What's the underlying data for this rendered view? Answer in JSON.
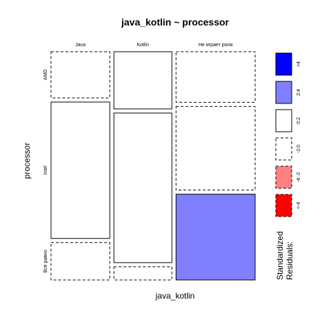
{
  "chart_data": {
    "type": "mosaic",
    "title": "java_kotlin ~ processor",
    "xlabel": "java_kotlin",
    "ylabel": "processor",
    "columns": [
      "Java",
      "Kotlin",
      "Не играет роли"
    ],
    "rows": [
      "AMD",
      "Intel",
      "Всё равно"
    ],
    "column_proportions": [
      0.3,
      0.296,
      0.404
    ],
    "cells": [
      {
        "column": "Java",
        "proportions": [
          0.21,
          0.62,
          0.17
        ],
        "residual_bins": [
          ">2 and <=4... see legend",
          "",
          ""
        ]
      },
      {
        "column": "Kotlin",
        "proportions": [
          0.26,
          0.68,
          0.06
        ]
      },
      {
        "column": "Не играет роли",
        "proportions": [
          0.23,
          0.38,
          0.39
        ]
      }
    ],
    "residual_classes": [
      [
        "<-2:-2..0",
        "0..2",
        "-2..0"
      ],
      [
        "-2..0",
        "0..2",
        "-2..0"
      ],
      [
        "0..2",
        "-2..0",
        "2..4"
      ]
    ],
    "legend": {
      "title_line1": "Standardized",
      "title_line2": "Residuals:",
      "entries": [
        {
          "label": ">4",
          "fill": "#0000ff",
          "border": "solid"
        },
        {
          "label": "2:4",
          "fill": "#8080ff",
          "border": "solid"
        },
        {
          "label": "0:2",
          "fill": "#ffffff",
          "border": "solid"
        },
        {
          "label": "-2:0",
          "fill": "#ffffff",
          "border": "dashed"
        },
        {
          "label": "-4:-2",
          "fill": "#ff8080",
          "border": "dashed"
        },
        {
          "label": "<-4",
          "fill": "#ff0000",
          "border": "dashed"
        }
      ]
    }
  },
  "colors": {
    "pos_2_4": "#8080ff",
    "pos_4": "#0000ff",
    "neg_2_4": "#ff8080",
    "neg_4": "#ff0000",
    "zero": "#ffffff"
  }
}
